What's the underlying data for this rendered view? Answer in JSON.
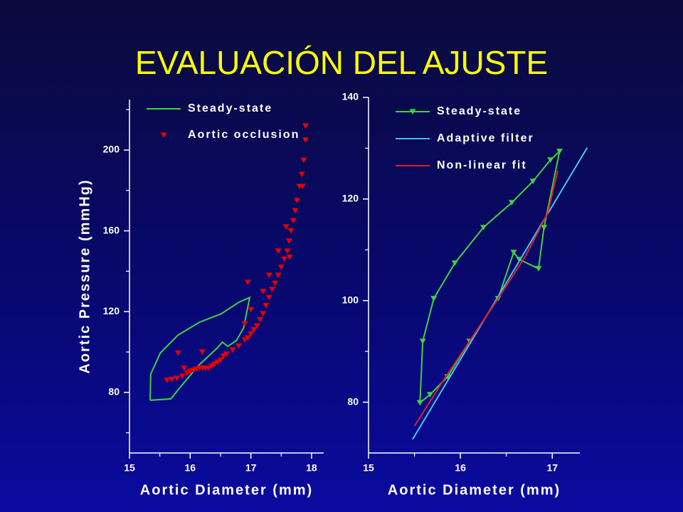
{
  "title": "EVALUACIÓN DEL AJUSTE",
  "chart_data": [
    {
      "type": "line",
      "xlabel": "Aortic Diameter (mm)",
      "ylabel": "Aortic Pressure (mmHg)",
      "xlim": [
        15,
        18.2
      ],
      "ylim": [
        50,
        225
      ],
      "xticks": [
        15,
        16,
        17,
        18
      ],
      "yticks": [
        80,
        120,
        160,
        200
      ],
      "minor_xticks": [
        15.5,
        16.5,
        17.5
      ],
      "minor_yticks": [
        60,
        100,
        140,
        180,
        220
      ],
      "legend": "upper left",
      "series": [
        {
          "name": "Steady-state",
          "color": "#3fd23f",
          "style": "line",
          "x": [
            15.34,
            15.68,
            15.92,
            16.15,
            16.45,
            16.53,
            16.62,
            16.76,
            16.88,
            16.98,
            16.8,
            16.51,
            16.15,
            15.8,
            15.51,
            15.35,
            15.34
          ],
          "y": [
            76.1,
            76.8,
            85.6,
            93.7,
            102.1,
            104.9,
            102.8,
            105.6,
            111.9,
            127.0,
            124.6,
            118.9,
            114.7,
            108.4,
            99.6,
            89.1,
            76.1
          ]
        },
        {
          "name": "Aortic occlusion",
          "color": "#e80000",
          "style": "markers",
          "marker": "triangle-down",
          "x": [
            15.62,
            15.7,
            15.78,
            15.8,
            15.87,
            15.9,
            15.95,
            16.0,
            16.05,
            16.1,
            16.15,
            16.2,
            16.2,
            16.25,
            16.3,
            16.35,
            16.4,
            16.45,
            16.5,
            16.55,
            16.6,
            16.7,
            16.8,
            16.9,
            16.95,
            17.0,
            17.05,
            17.1,
            17.15,
            17.2,
            17.25,
            17.3,
            17.35,
            17.4,
            17.45,
            17.5,
            17.55,
            17.6,
            17.63,
            17.66,
            17.7,
            17.73,
            17.76,
            17.8,
            17.84,
            17.87,
            17.85,
            16.95,
            17.0,
            16.9,
            17.2,
            17.3,
            17.45,
            17.58,
            17.64,
            17.9,
            17.9
          ],
          "y": [
            86,
            86.5,
            87,
            99.5,
            88,
            92,
            89.5,
            90.5,
            91,
            91.5,
            92,
            92,
            100,
            92,
            92,
            93,
            94,
            95,
            96,
            98,
            99,
            101,
            103,
            106,
            107,
            109,
            111,
            113,
            116,
            119,
            123,
            127,
            131,
            134,
            138,
            142,
            146,
            150,
            155,
            160,
            165,
            170,
            175,
            182,
            188,
            195,
            182,
            134.5,
            121,
            114,
            130,
            138,
            150,
            162,
            147,
            212,
            205
          ]
        }
      ]
    },
    {
      "type": "line",
      "xlabel": "Aortic Diameter (mm)",
      "xlim": [
        15,
        17.3
      ],
      "ylim": [
        70,
        140
      ],
      "xticks": [
        15,
        16,
        17
      ],
      "yticks": [
        80,
        100,
        120,
        140
      ],
      "minor_xticks": [
        15.5,
        16.5
      ],
      "minor_yticks": [
        90,
        110,
        130
      ],
      "legend": "upper left",
      "series": [
        {
          "name": "Steady-state",
          "color": "#3fd23f",
          "style": "line+markers",
          "marker": "triangle-down",
          "x": [
            15.56,
            15.59,
            15.71,
            15.94,
            16.25,
            16.56,
            16.79,
            16.98,
            17.08,
            16.91,
            16.85,
            16.64,
            16.58,
            16.41,
            16.1,
            15.86,
            15.67,
            15.56
          ],
          "y": [
            79.9,
            92.0,
            100.4,
            107.4,
            114.4,
            119.3,
            123.5,
            127.7,
            129.4,
            114.4,
            106.3,
            108.1,
            109.5,
            100.4,
            92.0,
            85.0,
            81.5,
            79.9
          ]
        },
        {
          "name": "Adaptive filter",
          "color": "#3cc8f0",
          "style": "line",
          "x": [
            15.48,
            17.38
          ],
          "y": [
            72.7,
            130.1
          ]
        },
        {
          "name": "Non-linear fit",
          "color": "#e02020",
          "style": "line",
          "x": [
            15.5,
            15.79,
            16.1,
            16.41,
            16.71,
            16.95,
            17.06
          ],
          "y": [
            75.3,
            83.6,
            92.0,
            100.4,
            108.8,
            117.2,
            125.6
          ]
        }
      ]
    }
  ]
}
